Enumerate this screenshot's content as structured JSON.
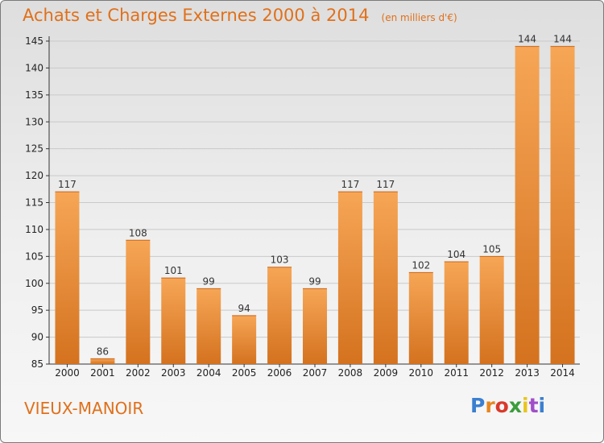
{
  "header": {
    "title": "Achats et Charges Externes 2000 à 2014",
    "unit": "(en milliers d'€)"
  },
  "footer": {
    "commune": "VIEUX-MANOIR",
    "logo": "Proxiti",
    "logo_colors": [
      "#3b7fd0",
      "#e8861e",
      "#d93a2b",
      "#3b9d3b",
      "#e8c51e",
      "#a04ec9",
      "#3b7fd0"
    ]
  },
  "colors": {
    "bar_light": "#f6a656",
    "bar_dark": "#d4721f",
    "title": "#e0701a"
  },
  "chart_data": {
    "type": "bar",
    "title": "Achats et Charges Externes 2000 à 2014",
    "subtitle": "(en milliers d'€)",
    "categories": [
      "2000",
      "2001",
      "2002",
      "2003",
      "2004",
      "2005",
      "2006",
      "2007",
      "2008",
      "2009",
      "2010",
      "2011",
      "2012",
      "2013",
      "2014"
    ],
    "values": [
      117,
      86,
      108,
      101,
      99,
      94,
      103,
      99,
      117,
      117,
      102,
      104,
      105,
      144,
      144
    ],
    "ylim": [
      85,
      145
    ],
    "yticks": [
      85,
      90,
      95,
      100,
      105,
      110,
      115,
      120,
      125,
      130,
      135,
      140,
      145
    ],
    "grid": true,
    "xlabel": "",
    "ylabel": ""
  }
}
